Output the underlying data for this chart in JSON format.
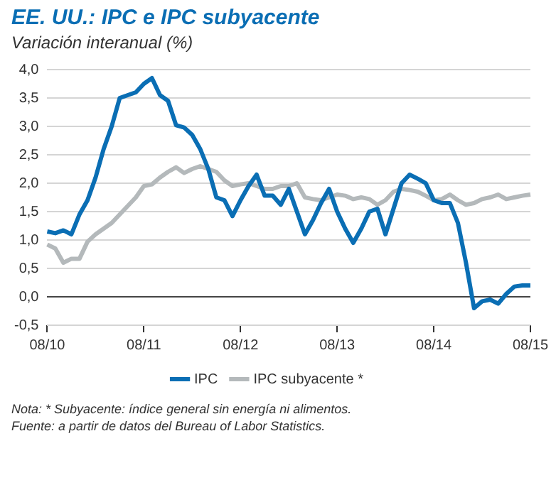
{
  "chart_data": {
    "type": "line",
    "title": "EE. UU.: IPC e IPC subyacente",
    "subtitle": "Variación interanual (%)",
    "categories": [
      "08/10",
      null,
      null,
      null,
      null,
      null,
      null,
      null,
      null,
      null,
      null,
      null,
      "08/11",
      null,
      null,
      null,
      null,
      null,
      null,
      null,
      null,
      null,
      null,
      null,
      "08/12",
      null,
      null,
      null,
      null,
      null,
      null,
      null,
      null,
      null,
      null,
      null,
      "08/13",
      null,
      null,
      null,
      null,
      null,
      null,
      null,
      null,
      null,
      null,
      null,
      "08/14",
      null,
      null,
      null,
      null,
      null,
      null,
      null,
      null,
      null,
      null,
      null,
      "08/15"
    ],
    "series": [
      {
        "name": "IPC",
        "color": "#0a6eb4",
        "values": [
          1.15,
          1.12,
          1.17,
          1.1,
          1.45,
          1.7,
          2.1,
          2.6,
          3.0,
          3.5,
          3.55,
          3.6,
          3.75,
          3.85,
          3.55,
          3.45,
          3.02,
          2.98,
          2.85,
          2.6,
          2.25,
          1.75,
          1.7,
          1.42,
          1.7,
          1.95,
          2.15,
          1.78,
          1.78,
          1.62,
          1.9,
          1.5,
          1.1,
          1.35,
          1.65,
          1.9,
          1.5,
          1.2,
          0.95,
          1.2,
          1.5,
          1.55,
          1.1,
          1.55,
          2.0,
          2.15,
          2.08,
          2.0,
          1.7,
          1.65,
          1.65,
          1.3,
          0.6,
          -0.2,
          -0.08,
          -0.05,
          -0.12,
          0.05,
          0.18,
          0.2,
          0.2
        ]
      },
      {
        "name": "IPC subyacente *",
        "color": "#b4b9bb",
        "values": [
          0.92,
          0.85,
          0.6,
          0.67,
          0.67,
          0.97,
          1.1,
          1.2,
          1.3,
          1.45,
          1.6,
          1.75,
          1.95,
          1.98,
          2.1,
          2.2,
          2.28,
          2.18,
          2.25,
          2.3,
          2.25,
          2.2,
          2.05,
          1.95,
          1.98,
          2.0,
          1.95,
          1.9,
          1.9,
          1.95,
          1.95,
          2.0,
          1.75,
          1.72,
          1.7,
          1.75,
          1.8,
          1.78,
          1.72,
          1.75,
          1.72,
          1.62,
          1.7,
          1.85,
          1.9,
          1.88,
          1.85,
          1.78,
          1.7,
          1.72,
          1.8,
          1.7,
          1.62,
          1.65,
          1.72,
          1.75,
          1.8,
          1.72,
          1.75,
          1.78,
          1.8
        ]
      }
    ],
    "ylim": [
      -0.5,
      4.0
    ],
    "yticks": [
      {
        "value": -0.5,
        "label": "-0,5"
      },
      {
        "value": 0,
        "label": "0,0"
      },
      {
        "value": 0.5,
        "label": "0,5"
      },
      {
        "value": 1,
        "label": "1,0"
      },
      {
        "value": 1.5,
        "label": "1,5"
      },
      {
        "value": 2,
        "label": "2,0"
      },
      {
        "value": 2.5,
        "label": "2,5"
      },
      {
        "value": 3,
        "label": "3,0"
      },
      {
        "value": 3.5,
        "label": "3,5"
      },
      {
        "value": 4,
        "label": "4,0"
      }
    ],
    "grid": "y",
    "legend": "bottom",
    "marker": "none",
    "line_style": "solid",
    "annotations": [
      "Nota: * Subyacente: índice general sin energía ni alimentos.",
      "Fuente: a partir de datos del Bureau of Labor Statistics."
    ]
  }
}
